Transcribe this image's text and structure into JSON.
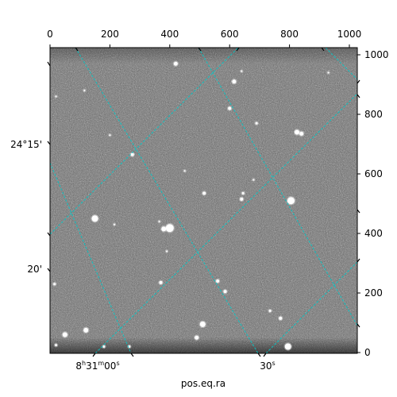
{
  "chart_data": {
    "type": "image",
    "colormap": "grayscale",
    "grid": true,
    "grid_color": "#00c8c8",
    "xlabel": "pos.eq.ra",
    "ylabel": "",
    "xlim": [
      0,
      1000
    ],
    "ylim": [
      0,
      1000
    ],
    "pixel_axes": {
      "top_ticks": [
        "0",
        "200",
        "400",
        "600",
        "800",
        "1000"
      ],
      "right_ticks": [
        "0",
        "200",
        "400",
        "600",
        "800",
        "1000"
      ]
    },
    "world_axes": {
      "ra_ticks": [
        {
          "h": "8",
          "m": "31",
          "s": "00",
          "label_suffix": "s"
        },
        {
          "s": "30",
          "label_suffix": "s"
        }
      ],
      "dec_ticks": [
        "24°15'",
        "20'"
      ]
    },
    "stars": [
      {
        "x": 420,
        "y": 970,
        "r": 2.5
      },
      {
        "x": 615,
        "y": 910,
        "r": 2.5
      },
      {
        "x": 600,
        "y": 820,
        "r": 2
      },
      {
        "x": 690,
        "y": 770,
        "r": 1.5
      },
      {
        "x": 825,
        "y": 740,
        "r": 3
      },
      {
        "x": 840,
        "y": 735,
        "r": 2.5
      },
      {
        "x": 275,
        "y": 665,
        "r": 2
      },
      {
        "x": 200,
        "y": 730,
        "r": 1
      },
      {
        "x": 515,
        "y": 535,
        "r": 2
      },
      {
        "x": 640,
        "y": 515,
        "r": 2
      },
      {
        "x": 645,
        "y": 535,
        "r": 1.5
      },
      {
        "x": 805,
        "y": 510,
        "r": 4.5
      },
      {
        "x": 150,
        "y": 450,
        "r": 4
      },
      {
        "x": 380,
        "y": 415,
        "r": 3
      },
      {
        "x": 400,
        "y": 418,
        "r": 5
      },
      {
        "x": 215,
        "y": 430,
        "r": 1
      },
      {
        "x": 365,
        "y": 440,
        "r": 1
      },
      {
        "x": 390,
        "y": 340,
        "r": 1
      },
      {
        "x": 370,
        "y": 235,
        "r": 2
      },
      {
        "x": 560,
        "y": 240,
        "r": 2
      },
      {
        "x": 585,
        "y": 205,
        "r": 2
      },
      {
        "x": 735,
        "y": 140,
        "r": 1.5
      },
      {
        "x": 770,
        "y": 115,
        "r": 2
      },
      {
        "x": 510,
        "y": 95,
        "r": 3.5
      },
      {
        "x": 490,
        "y": 50,
        "r": 2.5
      },
      {
        "x": 120,
        "y": 75,
        "r": 3
      },
      {
        "x": 50,
        "y": 60,
        "r": 3
      },
      {
        "x": 180,
        "y": 20,
        "r": 1.5
      },
      {
        "x": 265,
        "y": 20,
        "r": 1.5
      },
      {
        "x": 795,
        "y": 20,
        "r": 4
      },
      {
        "x": 15,
        "y": 230,
        "r": 1.5
      },
      {
        "x": 20,
        "y": 25,
        "r": 1.5
      },
      {
        "x": 115,
        "y": 880,
        "r": 1
      },
      {
        "x": 20,
        "y": 860,
        "r": 1
      },
      {
        "x": 930,
        "y": 940,
        "r": 1
      },
      {
        "x": 640,
        "y": 945,
        "r": 1
      },
      {
        "x": 450,
        "y": 610,
        "r": 1
      },
      {
        "x": 680,
        "y": 580,
        "r": 1
      }
    ]
  }
}
